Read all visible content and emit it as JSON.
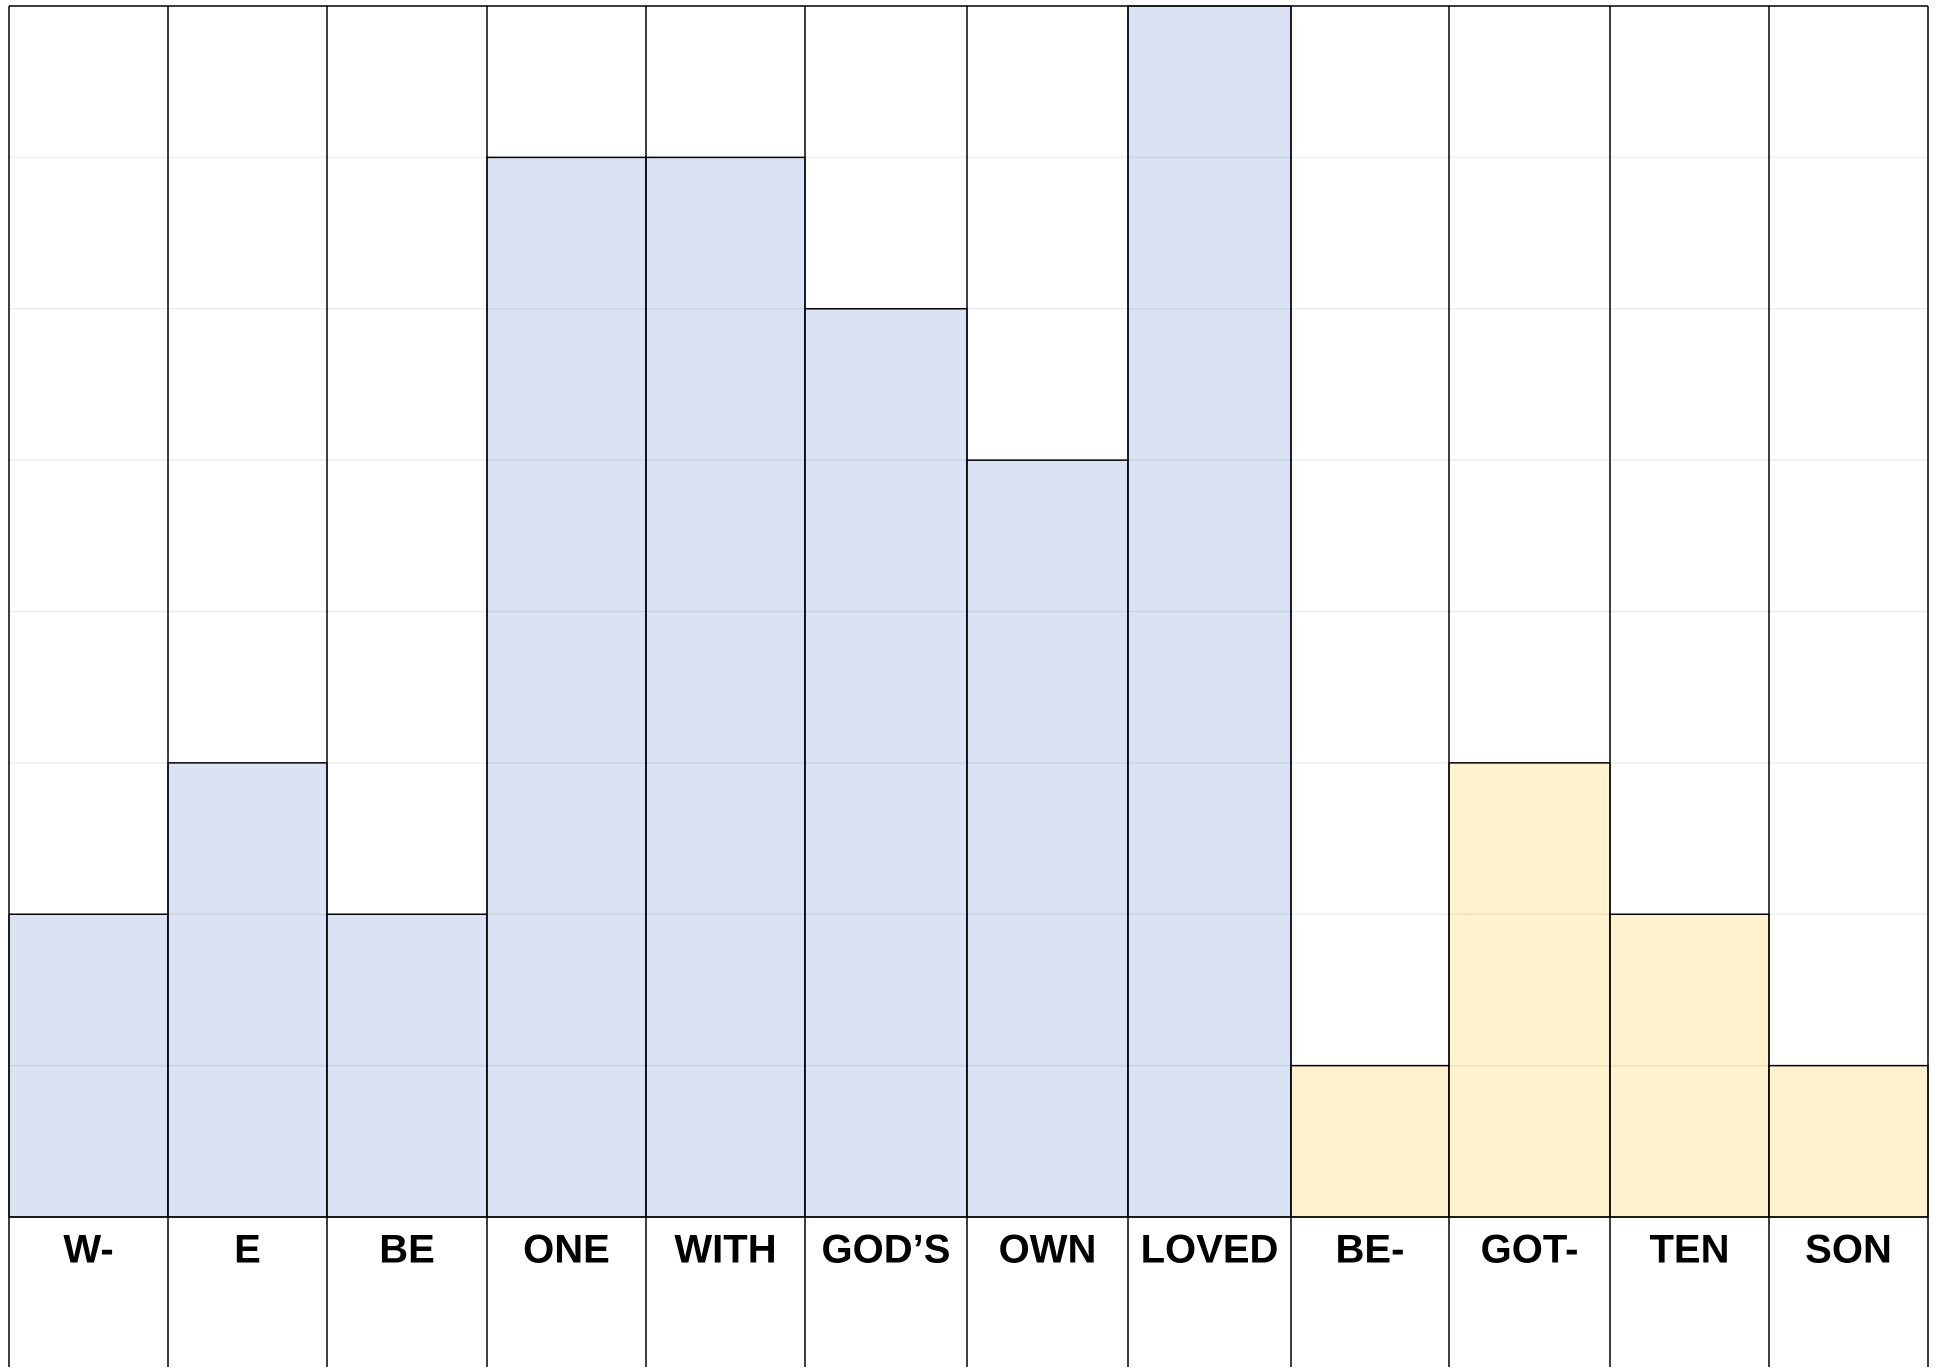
{
  "chart_data": {
    "type": "bar",
    "categories": [
      "W-",
      "E",
      "BE",
      "ONE",
      "WITH",
      "GOD’S",
      "OWN",
      "LOVED",
      "BE-",
      "GOT-",
      "TEN",
      "SON"
    ],
    "values": [
      2,
      3,
      2,
      7,
      7,
      6,
      5,
      8,
      1,
      3,
      2,
      1
    ],
    "colors": [
      "#dae3f3",
      "#dae3f3",
      "#dae3f3",
      "#dae3f3",
      "#dae3f3",
      "#dae3f3",
      "#dae3f3",
      "#dae3f3",
      "#fff2cc",
      "#fff2cc",
      "#fff2cc",
      "#fff2cc"
    ],
    "ylim": [
      0,
      8
    ],
    "yticks": [
      0,
      1,
      2,
      3,
      4,
      5,
      6,
      7,
      8
    ],
    "grid": true
  }
}
